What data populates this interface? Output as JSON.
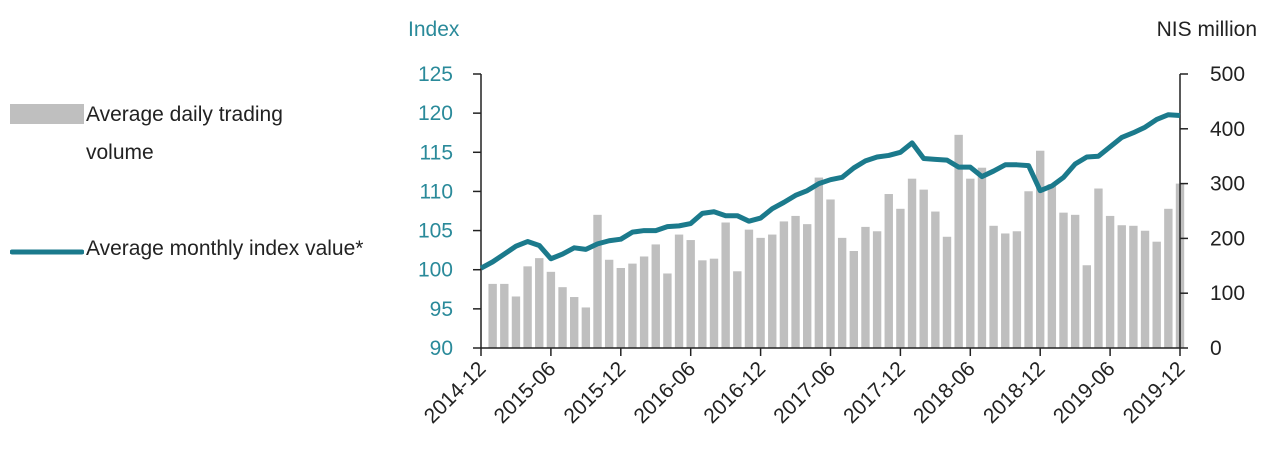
{
  "chart_data": {
    "type": "combo",
    "y_label": "Index",
    "y2_label": "NIS million",
    "categories": [
      "2014-12",
      null,
      null,
      null,
      null,
      null,
      "2015-06",
      null,
      null,
      null,
      null,
      null,
      "2015-12",
      null,
      null,
      null,
      null,
      null,
      "2016-06",
      null,
      null,
      null,
      null,
      null,
      "2016-12",
      null,
      null,
      null,
      null,
      null,
      "2017-06",
      null,
      null,
      null,
      null,
      null,
      "2017-12",
      null,
      null,
      null,
      null,
      null,
      "2018-06",
      null,
      null,
      null,
      null,
      null,
      "2018-12",
      null,
      null,
      null,
      null,
      null,
      "2019-06",
      null,
      null,
      null,
      null,
      null,
      "2019-12"
    ],
    "series": [
      {
        "name": "Average daily trading volume",
        "type": "bar",
        "axis": "y2",
        "color": "#bfbfbf",
        "values": [
          null,
          117,
          117,
          94,
          149,
          164,
          139,
          111,
          93,
          74,
          243,
          161,
          146,
          154,
          167,
          189,
          136,
          207,
          197,
          160,
          163,
          229,
          140,
          216,
          201,
          207,
          231,
          241,
          226,
          311,
          271,
          201,
          177,
          221,
          213,
          281,
          254,
          309,
          289,
          249,
          203,
          389,
          309,
          329,
          223,
          209,
          213,
          286,
          360,
          299,
          247,
          243,
          151,
          291,
          241,
          224,
          223,
          214,
          194,
          254,
          300
        ]
      },
      {
        "name": "Average monthly index value*",
        "type": "line",
        "color": "#1b7a8c",
        "values": [
          100.2,
          101,
          102,
          103,
          103.6,
          103.1,
          101.4,
          102,
          102.8,
          102.6,
          103.3,
          103.7,
          103.9,
          104.8,
          105,
          105,
          105.5,
          105.6,
          105.9,
          107.2,
          107.4,
          106.9,
          106.9,
          106.2,
          106.6,
          107.8,
          108.6,
          109.5,
          110.1,
          111,
          111.5,
          111.8,
          113,
          113.9,
          114.4,
          114.6,
          115,
          116.2,
          114.2,
          114.1,
          114,
          113.1,
          113.1,
          111.9,
          112.6,
          113.4,
          113.4,
          113.3,
          110.1,
          110.7,
          111.8,
          113.5,
          114.4,
          114.5,
          115.7,
          116.9,
          117.5,
          118.2,
          119.2,
          119.8,
          119.7
        ]
      }
    ],
    "ylim": [
      90,
      125
    ],
    "yticks": [
      90,
      95,
      100,
      105,
      110,
      115,
      120,
      125
    ],
    "y2lim": [
      0,
      500
    ],
    "y2ticks": [
      0,
      100,
      200,
      300,
      400,
      500
    ]
  }
}
